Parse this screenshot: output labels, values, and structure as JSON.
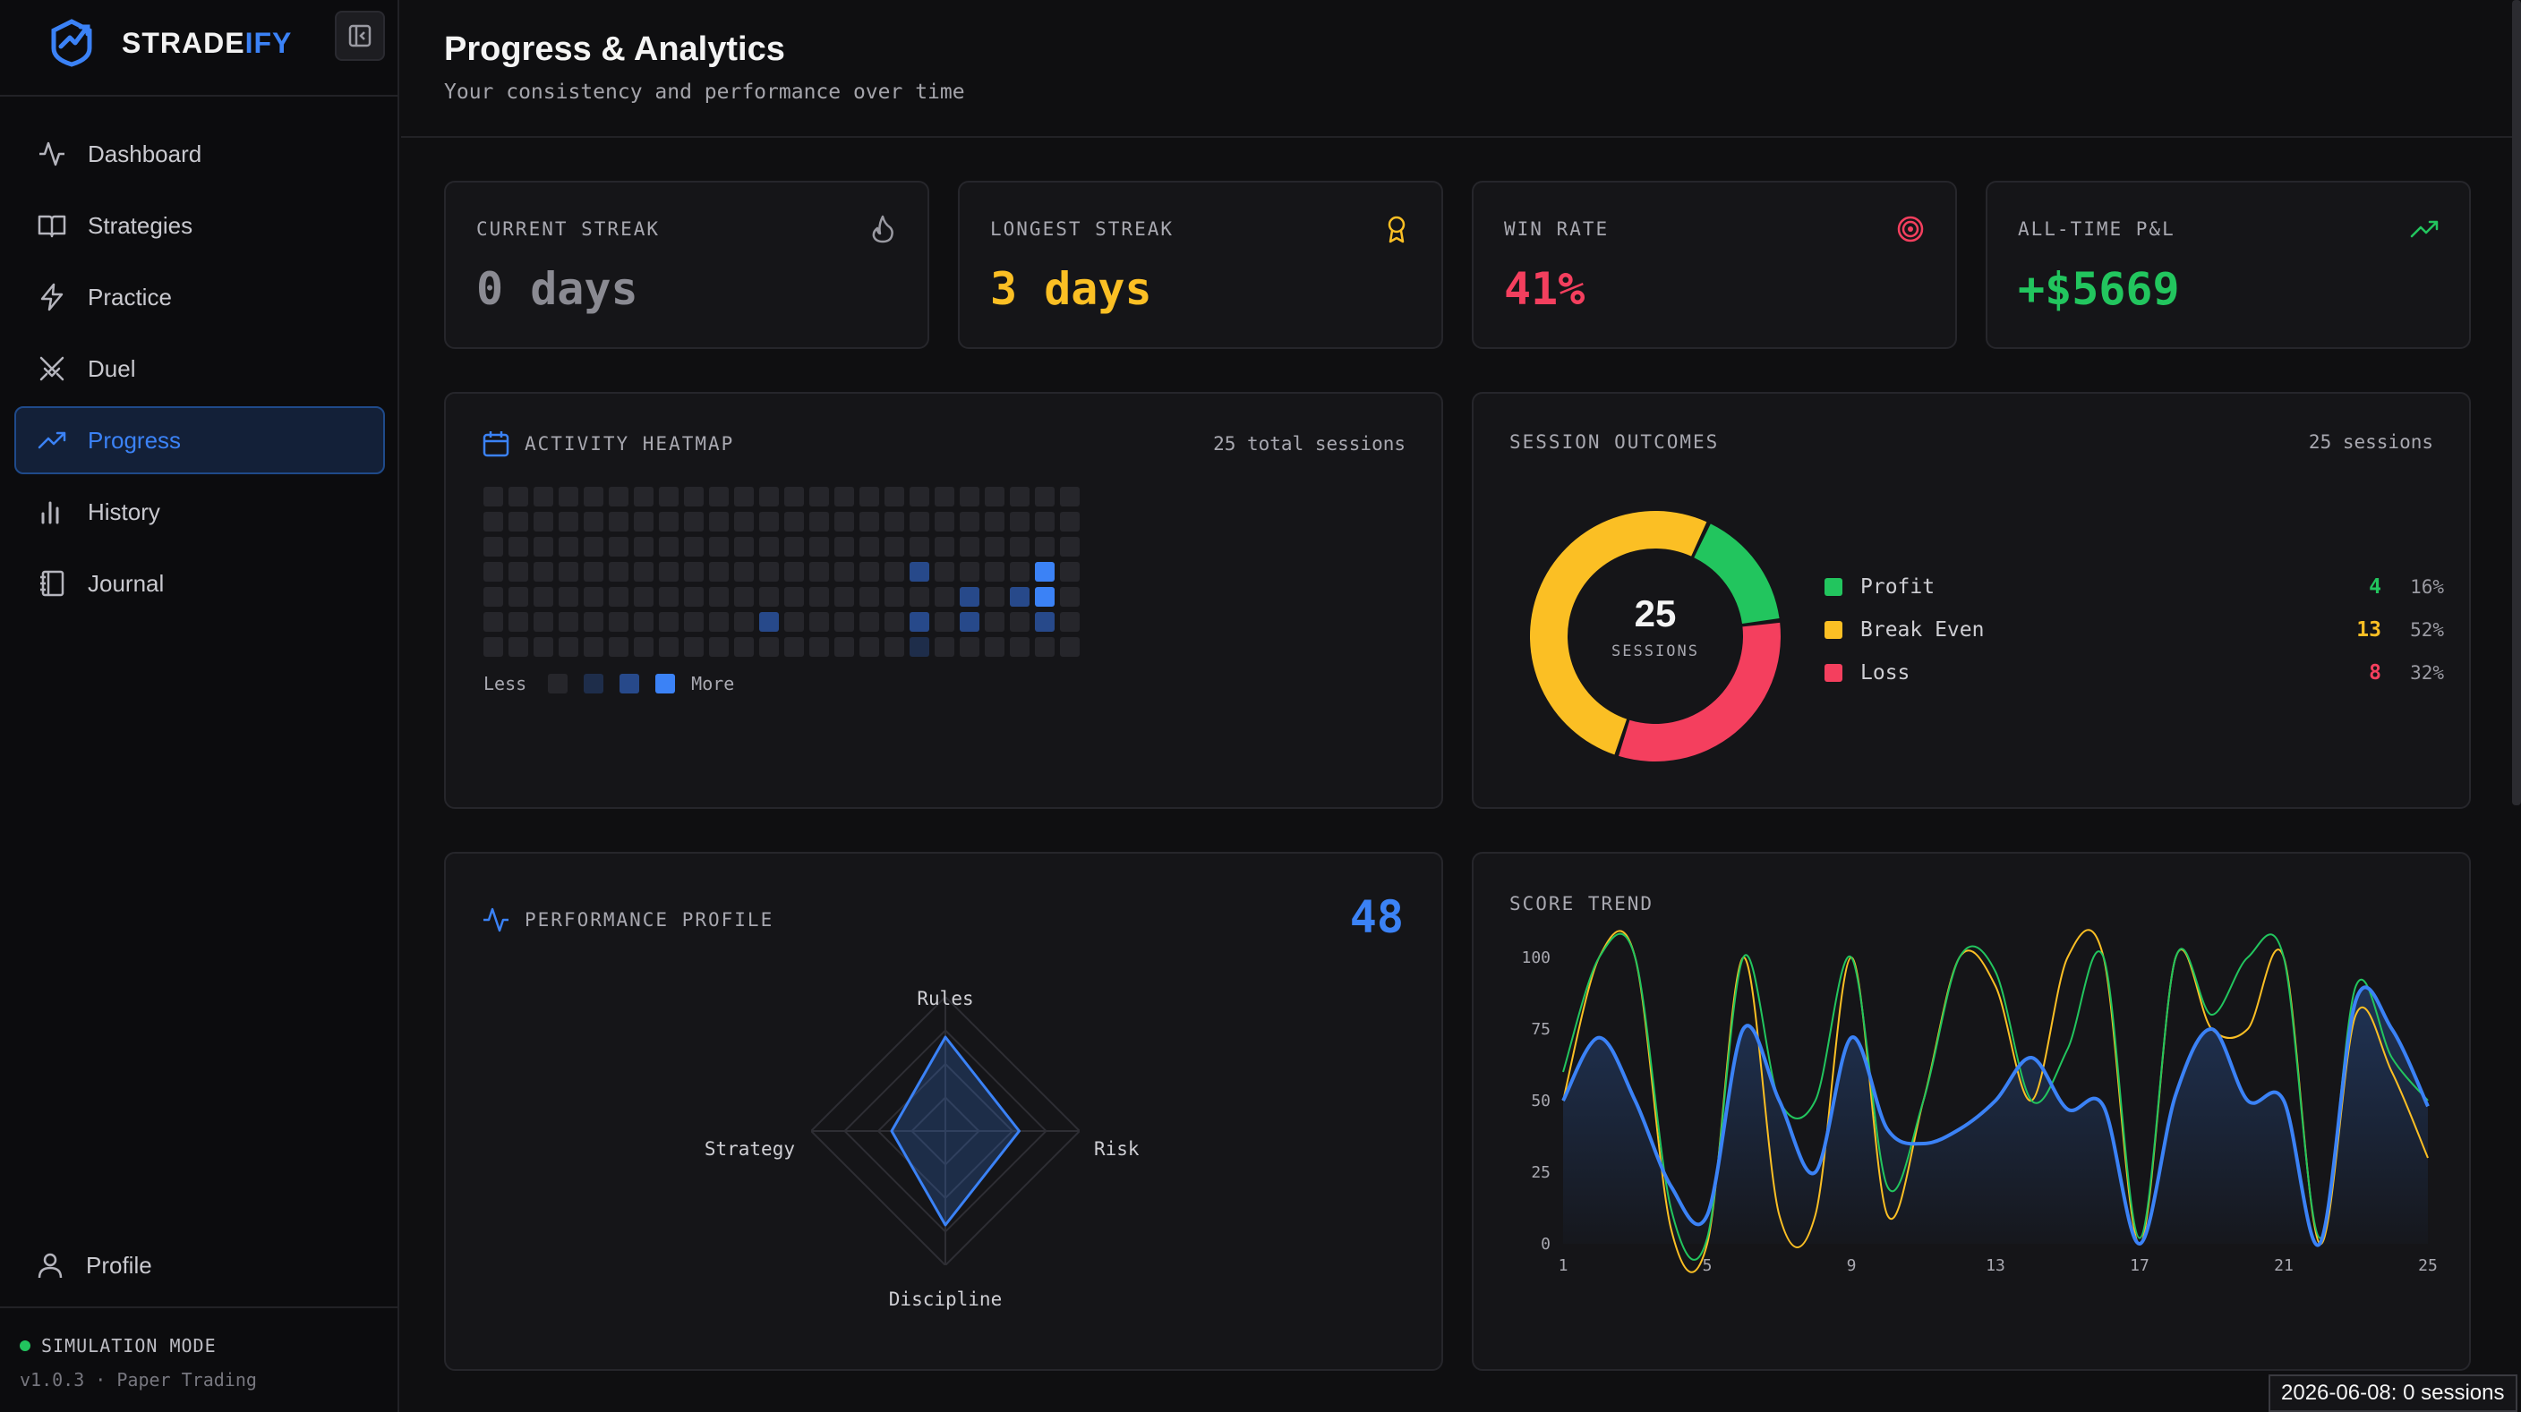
{
  "brand": {
    "name_main": "STRADE",
    "name_accent": "IFY"
  },
  "nav": {
    "items": [
      {
        "label": "Dashboard",
        "icon": "activity-icon"
      },
      {
        "label": "Strategies",
        "icon": "book-icon"
      },
      {
        "label": "Practice",
        "icon": "lightning-icon"
      },
      {
        "label": "Duel",
        "icon": "swords-icon"
      },
      {
        "label": "Progress",
        "icon": "trending-up-icon",
        "active": true
      },
      {
        "label": "History",
        "icon": "bar-chart-icon"
      },
      {
        "label": "Journal",
        "icon": "notebook-icon"
      }
    ],
    "profile_label": "Profile"
  },
  "footer": {
    "mode": "SIMULATION MODE",
    "version": "v1.0.3 · Paper Trading"
  },
  "header": {
    "title": "Progress & Analytics",
    "subtitle": "Your consistency and performance over time"
  },
  "stats": [
    {
      "label": "CURRENT STREAK",
      "value": "0 days",
      "color": "#8a8a92",
      "icon": "flame-icon"
    },
    {
      "label": "LONGEST STREAK",
      "value": "3 days",
      "color": "#fbbf24",
      "icon": "award-icon"
    },
    {
      "label": "WIN RATE",
      "value": "41%",
      "color": "#f43f5e",
      "icon": "target-icon"
    },
    {
      "label": "ALL-TIME P&L",
      "value": "+$5669",
      "color": "#22c55e",
      "icon": "trending-up-icon"
    }
  ],
  "heatmap": {
    "label": "ACTIVITY HEATMAP",
    "meta": "25 total sessions",
    "legend_less": "Less",
    "legend_more": "More",
    "levels": [
      "#26262b",
      "#1e2d4a",
      "#27498a",
      "#3b82f6"
    ],
    "active_cells": [
      {
        "col": 17,
        "row": 3,
        "level": 2
      },
      {
        "col": 22,
        "row": 3,
        "level": 3
      },
      {
        "col": 19,
        "row": 4,
        "level": 2
      },
      {
        "col": 21,
        "row": 4,
        "level": 2
      },
      {
        "col": 22,
        "row": 4,
        "level": 3
      },
      {
        "col": 11,
        "row": 5,
        "level": 2
      },
      {
        "col": 17,
        "row": 5,
        "level": 2
      },
      {
        "col": 19,
        "row": 5,
        "level": 2
      },
      {
        "col": 22,
        "row": 5,
        "level": 2
      },
      {
        "col": 17,
        "row": 6,
        "level": 1
      }
    ]
  },
  "outcomes": {
    "label": "SESSION OUTCOMES",
    "meta": "25 sessions",
    "center_value": "25",
    "center_label": "SESSIONS",
    "rows": [
      {
        "name": "Profit",
        "count": "4",
        "pct": "16%",
        "color": "#22c55e"
      },
      {
        "name": "Break Even",
        "count": "13",
        "pct": "52%",
        "color": "#fbbf24"
      },
      {
        "name": "Loss",
        "count": "8",
        "pct": "32%",
        "color": "#f43f5e"
      }
    ]
  },
  "performance": {
    "label": "PERFORMANCE PROFILE",
    "score": "48",
    "axes": [
      "Rules",
      "Risk",
      "Discipline",
      "Strategy"
    ]
  },
  "trend": {
    "label": "SCORE TREND",
    "y_ticks": [
      "100",
      "75",
      "50",
      "25",
      "0"
    ],
    "x_ticks": [
      "1",
      "5",
      "9",
      "13",
      "17",
      "21",
      "25"
    ]
  },
  "tooltip": "2026-06-08: 0 sessions",
  "chart_data": [
    {
      "type": "pie",
      "title": "SESSION OUTCOMES",
      "categories": [
        "Profit",
        "Break Even",
        "Loss"
      ],
      "values": [
        4,
        13,
        8
      ],
      "colors": [
        "#22c55e",
        "#fbbf24",
        "#f43f5e"
      ]
    },
    {
      "type": "line",
      "title": "SCORE TREND",
      "x": [
        1,
        2,
        3,
        4,
        5,
        6,
        7,
        8,
        9,
        10,
        11,
        12,
        13,
        14,
        15,
        16,
        17,
        18,
        19,
        20,
        21,
        22,
        23,
        24,
        25
      ],
      "ylim": [
        0,
        100
      ],
      "grid": false,
      "series": [
        {
          "values": [
            50,
            72,
            50,
            20,
            10,
            75,
            50,
            25,
            72,
            40,
            35,
            40,
            50,
            65,
            47,
            48,
            0,
            52,
            75,
            50,
            50,
            0,
            85,
            75,
            48
          ],
          "color": "#3b82f6"
        },
        {
          "values": [
            60,
            100,
            100,
            12,
            2,
            100,
            50,
            50,
            100,
            20,
            50,
            100,
            95,
            50,
            68,
            100,
            2,
            100,
            80,
            100,
            100,
            2,
            90,
            65,
            50
          ],
          "color": "#22c55e"
        },
        {
          "values": [
            50,
            100,
            100,
            5,
            0,
            100,
            10,
            10,
            100,
            10,
            50,
            100,
            90,
            50,
            100,
            100,
            0,
            100,
            75,
            75,
            100,
            0,
            80,
            60,
            30
          ],
          "color": "#fbbf24"
        }
      ]
    },
    {
      "type": "radar",
      "title": "PERFORMANCE PROFILE",
      "categories": [
        "Rules",
        "Risk",
        "Discipline",
        "Strategy"
      ],
      "values": [
        70,
        55,
        70,
        40
      ],
      "max": 100,
      "color": "#3b82f6"
    }
  ]
}
